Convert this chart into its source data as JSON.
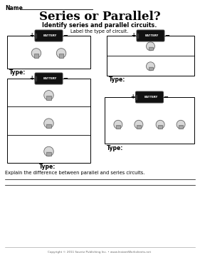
{
  "title": "Series or Parallel?",
  "subtitle": "Identify series and parallel circuits.",
  "label_instruction": "Label the type of circuit.",
  "name_label": "Name",
  "type_label": "Type:",
  "explain_label": "Explain the difference between parallel and series circuits.",
  "copyright": "Copyright © 2011 Savetz Publishing Inc. • www.InstantWorksheets.net",
  "bg_color": "#ffffff",
  "text_color": "#000000",
  "box_color": "#000000",
  "battery_body": "#111111",
  "battery_text": "#ffffff",
  "bulb_glass": "#d8d8d8",
  "bulb_base": "#aaaaaa",
  "bulb_edge": "#666666"
}
